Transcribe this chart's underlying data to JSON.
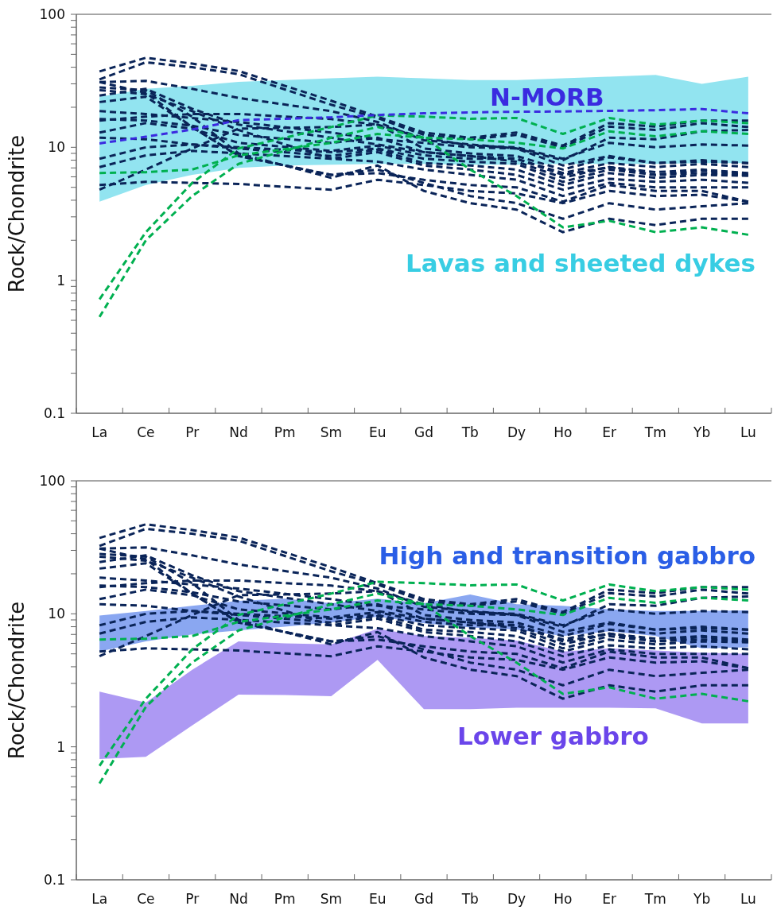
{
  "chart_data": [
    {
      "type": "line",
      "ylabel": "Rock/Chondrite",
      "line_style": "dashed",
      "log": true,
      "ylim": [
        0.1,
        100
      ],
      "yticks": [
        0.1,
        {
          "value": 0.2,
          "label": null
        },
        {
          "value": 0.3,
          "label": null
        },
        {
          "value": 0.4,
          "label": null
        },
        {
          "value": 0.5,
          "label": null
        },
        {
          "value": 0.6,
          "label": null
        },
        {
          "value": 0.7,
          "label": null
        },
        {
          "value": 0.8,
          "label": null
        },
        {
          "value": 0.9,
          "label": null
        },
        1,
        {
          "value": 2,
          "label": null
        },
        {
          "value": 3,
          "label": null
        },
        {
          "value": 4,
          "label": null
        },
        {
          "value": 5,
          "label": null
        },
        {
          "value": 6,
          "label": null
        },
        {
          "value": 7,
          "label": null
        },
        {
          "value": 8,
          "label": null
        },
        {
          "value": 9,
          "label": null
        },
        10,
        {
          "value": 20,
          "label": null
        },
        {
          "value": 30,
          "label": null
        },
        {
          "value": 40,
          "label": null
        },
        {
          "value": 50,
          "label": null
        },
        {
          "value": 60,
          "label": null
        },
        {
          "value": 70,
          "label": null
        },
        {
          "value": 80,
          "label": null
        },
        {
          "value": 90,
          "label": null
        },
        100
      ],
      "categories": [
        "La",
        "Ce",
        "Pr",
        "Nd",
        "Pm",
        "Sm",
        "Eu",
        "Gd",
        "Tb",
        "Dy",
        "Ho",
        "Er",
        "Tm",
        "Yb",
        "Lu"
      ],
      "series": [
        {
          "name": "Lavas and sheeted dykes",
          "color": "#38cde3",
          "values": [
            null,
            null,
            null,
            null,
            null,
            null,
            null,
            null,
            null,
            null,
            null,
            null,
            null,
            null,
            null
          ],
          "lower": [
            3.9,
            5.2,
            6.2,
            7.0,
            7.3,
            7.4,
            7.5,
            7.5,
            7.4,
            7.4,
            7.5,
            7.5,
            7.5,
            7.6,
            7.6
          ],
          "upper": [
            24,
            27.5,
            29,
            31,
            32,
            33,
            34,
            33,
            32,
            32,
            33,
            34,
            35,
            30,
            34
          ]
        },
        {
          "color": "#0a2458",
          "values": [
            37.2,
            47.1,
            42.6,
            37.5,
            null,
            22.4,
            17.0,
            12.9,
            11.8,
            12.9,
            10.3,
            15.2,
            14.3,
            15.9,
            15.9
          ]
        },
        {
          "color": "#0a2458",
          "values": [
            32.4,
            43.6,
            40,
            35.5,
            null,
            20.9,
            16.6,
            12.4,
            11.5,
            12.4,
            10.0,
            14.3,
            13.5,
            15.2,
            14.2
          ]
        },
        {
          "color": "#0a2458",
          "values": [
            30.9,
            31.6,
            27.5,
            23.5,
            null,
            18.7,
            15.5,
            11.3,
            10.5,
            9.8,
            8.0,
            11.8,
            11.5,
            13.2,
            13.5
          ]
        },
        {
          "color": "#0a2458",
          "values": [
            21.9,
            24.0,
            14.2,
            8.6,
            null,
            6.2,
            6.4,
            5.7,
            5.2,
            5.0,
            3.9,
            5.2,
            4.7,
            4.7,
            3.9
          ]
        },
        {
          "color": "#0a2458",
          "values": [
            4.8,
            6.8,
            9.8,
            13.8,
            null,
            14.2,
            14.8,
            11.8,
            10.3,
            10.0,
            8.2,
            10.8,
            10.0,
            10.5,
            10.3
          ]
        },
        {
          "color": "#0a2458",
          "values": [
            15.9,
            17.0,
            17.8,
            17.8,
            null,
            16.3,
            14.8,
            9.8,
            9.0,
            8.6,
            6.8,
            8.4,
            7.6,
            8.0,
            7.6
          ]
        },
        {
          "color": "#0a2458",
          "values": [
            16.3,
            15.9,
            14.5,
            12.4,
            null,
            10.8,
            11.8,
            9.2,
            8.6,
            8.2,
            6.4,
            7.6,
            7.1,
            7.5,
            7.1
          ]
        },
        {
          "color": "#0a2458",
          "values": [
            12.9,
            15.2,
            13.8,
            10.8,
            null,
            9.4,
            10.3,
            8.7,
            8.2,
            8.2,
            6.2,
            7.1,
            6.5,
            6.8,
            6.4
          ]
        },
        {
          "color": "#0a2458",
          "values": [
            11.8,
            11.5,
            10.5,
            10.0,
            null,
            9.2,
            9.8,
            8.2,
            7.8,
            7.5,
            5.5,
            6.8,
            6.2,
            6.7,
            6.2
          ]
        },
        {
          "color": "#0a2458",
          "values": [
            8.2,
            10.0,
            10.5,
            9.8,
            null,
            8.6,
            9.6,
            7.6,
            7.3,
            6.8,
            5.2,
            6.4,
            5.9,
            6.2,
            6.1
          ]
        },
        {
          "color": "#0a2458",
          "values": [
            7.1,
            8.7,
            9.4,
            9.0,
            null,
            8.2,
            9.2,
            7.3,
            6.8,
            6.2,
            4.8,
            5.8,
            5.5,
            5.7,
            5.4
          ]
        },
        {
          "color": "#0a2458",
          "values": [
            5.2,
            5.5,
            5.4,
            5.3,
            null,
            4.8,
            5.7,
            5.2,
            4.7,
            4.5,
            3.8,
            4.7,
            4.3,
            4.4,
            3.9
          ]
        },
        {
          "color": "#0a2458",
          "values": [
            26.9,
            25.1,
            18.7,
            13.5,
            null,
            8.2,
            7.8,
            6.8,
            6.2,
            5.7,
            4.3,
            5.4,
            5.0,
            5.0,
            5.0
          ]
        },
        {
          "color": "#0a2458",
          "values": [
            30.9,
            25.7,
            14.2,
            8.6,
            null,
            6.2,
            6.8,
            5.4,
            4.3,
            3.8,
            2.9,
            3.8,
            3.4,
            3.6,
            3.8
          ]
        },
        {
          "color": "#0a2458",
          "values": [
            28.2,
            26.9,
            17.0,
            9.0,
            null,
            5.9,
            7.3,
            4.7,
            3.8,
            3.4,
            2.3,
            2.9,
            2.6,
            2.9,
            2.9
          ]
        },
        {
          "color": "#0a2458",
          "values": [
            24.5,
            27.5,
            19.5,
            14.8,
            null,
            11.8,
            10.5,
            9.2,
            8.6,
            7.8,
            5.9,
            7.1,
            6.2,
            6.4,
            6.2
          ]
        },
        {
          "color": "#0a2458",
          "values": [
            18.7,
            17.8,
            16.6,
            15.5,
            null,
            12.9,
            11.5,
            10.8,
            10.0,
            9.8,
            7.3,
            8.6,
            7.6,
            7.8,
            7.6
          ]
        },
        {
          "color": "#00b050",
          "values": [
            0.72,
            2.3,
            5.4,
            9.8,
            null,
            14.2,
            17.4,
            17.0,
            16.4,
            16.6,
            12.6,
            16.6,
            14.8,
            15.9,
            15.2
          ]
        },
        {
          "color": "#00b050",
          "values": [
            0.53,
            2.0,
            4.3,
            7.5,
            null,
            11.8,
            14.2,
            11.8,
            6.8,
            4.3,
            2.5,
            2.8,
            2.3,
            2.5,
            2.2
          ]
        },
        {
          "color": "#00b050",
          "values": [
            6.4,
            6.5,
            6.8,
            8.7,
            null,
            10.8,
            12.6,
            11.8,
            11.5,
            10.8,
            9.8,
            13.2,
            12.1,
            13.2,
            12.6
          ]
        },
        {
          "name": "N-MORB",
          "color": "#3a2be0",
          "values": [
            10.7,
            12,
            13.6,
            16,
            null,
            16.8,
            17.5,
            18,
            18.3,
            18.5,
            18.6,
            18.8,
            19,
            19.4,
            18
          ]
        }
      ]
    },
    {
      "type": "line",
      "ylabel": "Rock/Chondrite",
      "line_style": "dashed",
      "log": true,
      "ylim": [
        0.1,
        100
      ],
      "yticks": [
        0.1,
        {
          "value": 0.2,
          "label": null
        },
        {
          "value": 0.3,
          "label": null
        },
        {
          "value": 0.4,
          "label": null
        },
        {
          "value": 0.5,
          "label": null
        },
        {
          "value": 0.6,
          "label": null
        },
        {
          "value": 0.7,
          "label": null
        },
        {
          "value": 0.8,
          "label": null
        },
        {
          "value": 0.9,
          "label": null
        },
        1,
        {
          "value": 2,
          "label": null
        },
        {
          "value": 3,
          "label": null
        },
        {
          "value": 4,
          "label": null
        },
        {
          "value": 5,
          "label": null
        },
        {
          "value": 6,
          "label": null
        },
        {
          "value": 7,
          "label": null
        },
        {
          "value": 8,
          "label": null
        },
        {
          "value": 9,
          "label": null
        },
        10,
        {
          "value": 20,
          "label": null
        },
        {
          "value": 30,
          "label": null
        },
        {
          "value": 40,
          "label": null
        },
        {
          "value": 50,
          "label": null
        },
        {
          "value": 60,
          "label": null
        },
        {
          "value": 70,
          "label": null
        },
        {
          "value": 80,
          "label": null
        },
        {
          "value": 90,
          "label": null
        },
        100
      ],
      "categories": [
        "La",
        "Ce",
        "Pr",
        "Nd",
        "Pm",
        "Sm",
        "Eu",
        "Gd",
        "Tb",
        "Dy",
        "Ho",
        "Er",
        "Tm",
        "Yb",
        "Lu"
      ],
      "series": [
        {
          "name": "Lower gabbro",
          "color": "#6a45ea",
          "values": [
            null,
            null,
            null,
            null,
            null,
            null,
            null,
            null,
            null,
            null,
            null,
            null,
            null,
            null,
            null
          ],
          "lower": [
            0.81,
            0.84,
            1.45,
            2.47,
            2.45,
            2.4,
            4.5,
            1.92,
            1.92,
            1.97,
            1.97,
            1.97,
            1.95,
            1.5,
            1.5
          ],
          "upper": [
            2.6,
            2.15,
            3.8,
            6.2,
            6.0,
            5.9,
            7.7,
            6.8,
            6.6,
            6.3,
            5.2,
            5.5,
            5.3,
            5.1,
            5.0
          ]
        },
        {
          "name": "High and transition gabbro",
          "color": "#2a5ee6",
          "values": [
            null,
            null,
            null,
            null,
            null,
            null,
            null,
            null,
            null,
            null,
            null,
            null,
            null,
            null,
            null
          ],
          "lower": [
            5.2,
            6.2,
            7.0,
            7.5,
            8,
            8.6,
            9.5,
            8.5,
            7.9,
            7.6,
            6.8,
            7.4,
            6.8,
            5.5,
            5.6
          ],
          "upper": [
            9.7,
            10.5,
            11.5,
            12.5,
            13,
            12,
            13,
            12,
            14,
            11.8,
            11.5,
            10.8,
            10.5,
            10.5,
            10.6
          ]
        },
        {
          "color": "#0a2458",
          "values": [
            37.2,
            47.1,
            42.6,
            37.5,
            null,
            22.4,
            17.0,
            12.9,
            11.8,
            12.9,
            10.3,
            15.2,
            14.3,
            15.9,
            15.9
          ]
        },
        {
          "color": "#0a2458",
          "values": [
            32.4,
            43.6,
            40,
            35.5,
            null,
            20.9,
            16.6,
            12.4,
            11.5,
            12.4,
            10.0,
            14.3,
            13.5,
            15.2,
            14.2
          ]
        },
        {
          "color": "#0a2458",
          "values": [
            30.9,
            31.6,
            27.5,
            23.5,
            null,
            18.7,
            15.5,
            11.3,
            10.5,
            9.8,
            8.0,
            11.8,
            11.5,
            13.2,
            13.5
          ]
        },
        {
          "color": "#0a2458",
          "values": [
            21.9,
            24.0,
            14.2,
            8.6,
            null,
            6.2,
            6.4,
            5.7,
            5.2,
            5.0,
            3.9,
            5.2,
            4.7,
            4.7,
            3.9
          ]
        },
        {
          "color": "#0a2458",
          "values": [
            4.8,
            6.8,
            9.8,
            13.8,
            null,
            14.2,
            14.8,
            11.8,
            10.3,
            10.0,
            8.2,
            10.8,
            10.0,
            10.5,
            10.3
          ]
        },
        {
          "color": "#0a2458",
          "values": [
            15.9,
            17.0,
            17.8,
            17.8,
            null,
            16.3,
            14.8,
            9.8,
            9.0,
            8.6,
            6.8,
            8.4,
            7.6,
            8.0,
            7.6
          ]
        },
        {
          "color": "#0a2458",
          "values": [
            16.3,
            15.9,
            14.5,
            12.4,
            null,
            10.8,
            11.8,
            9.2,
            8.6,
            8.2,
            6.4,
            7.6,
            7.1,
            7.5,
            7.1
          ]
        },
        {
          "color": "#0a2458",
          "values": [
            12.9,
            15.2,
            13.8,
            10.8,
            null,
            9.4,
            10.3,
            8.7,
            8.2,
            8.2,
            6.2,
            7.1,
            6.5,
            6.8,
            6.4
          ]
        },
        {
          "color": "#0a2458",
          "values": [
            11.8,
            11.5,
            10.5,
            10.0,
            null,
            9.2,
            9.8,
            8.2,
            7.8,
            7.5,
            5.5,
            6.8,
            6.2,
            6.7,
            6.2
          ]
        },
        {
          "color": "#0a2458",
          "values": [
            8.2,
            10.0,
            10.5,
            9.8,
            null,
            8.6,
            9.6,
            7.6,
            7.3,
            6.8,
            5.2,
            6.4,
            5.9,
            6.2,
            6.1
          ]
        },
        {
          "color": "#0a2458",
          "values": [
            7.1,
            8.7,
            9.4,
            9.0,
            null,
            8.2,
            9.2,
            7.3,
            6.8,
            6.2,
            4.8,
            5.8,
            5.5,
            5.7,
            5.4
          ]
        },
        {
          "color": "#0a2458",
          "values": [
            5.2,
            5.5,
            5.4,
            5.3,
            null,
            4.8,
            5.7,
            5.2,
            4.7,
            4.5,
            3.8,
            4.7,
            4.3,
            4.4,
            3.9
          ]
        },
        {
          "color": "#0a2458",
          "values": [
            26.9,
            25.1,
            18.7,
            13.5,
            null,
            8.2,
            7.8,
            6.8,
            6.2,
            5.7,
            4.3,
            5.4,
            5.0,
            5.0,
            5.0
          ]
        },
        {
          "color": "#0a2458",
          "values": [
            30.9,
            25.7,
            14.2,
            8.6,
            null,
            6.2,
            6.8,
            5.4,
            4.3,
            3.8,
            2.9,
            3.8,
            3.4,
            3.6,
            3.8
          ]
        },
        {
          "color": "#0a2458",
          "values": [
            28.2,
            26.9,
            17.0,
            9.0,
            null,
            5.9,
            7.3,
            4.7,
            3.8,
            3.4,
            2.3,
            2.9,
            2.6,
            2.9,
            2.9
          ]
        },
        {
          "color": "#0a2458",
          "values": [
            24.5,
            27.5,
            19.5,
            14.8,
            null,
            11.8,
            10.5,
            9.2,
            8.6,
            7.8,
            5.9,
            7.1,
            6.2,
            6.4,
            6.2
          ]
        },
        {
          "color": "#0a2458",
          "values": [
            18.7,
            17.8,
            16.6,
            15.5,
            null,
            12.9,
            11.5,
            10.8,
            10.0,
            9.8,
            7.3,
            8.6,
            7.6,
            7.8,
            7.6
          ]
        },
        {
          "color": "#00b050",
          "values": [
            0.72,
            2.3,
            5.4,
            9.8,
            null,
            14.2,
            17.4,
            17.0,
            16.4,
            16.6,
            12.6,
            16.6,
            14.8,
            15.9,
            15.2
          ]
        },
        {
          "color": "#00b050",
          "values": [
            0.53,
            2.0,
            4.3,
            7.5,
            null,
            11.8,
            14.2,
            11.8,
            6.8,
            4.3,
            2.5,
            2.8,
            2.3,
            2.5,
            2.2
          ]
        },
        {
          "color": "#00b050",
          "values": [
            6.4,
            6.5,
            6.8,
            8.7,
            null,
            10.8,
            12.6,
            11.8,
            11.5,
            10.8,
            9.8,
            13.2,
            12.1,
            13.2,
            12.6
          ]
        }
      ]
    }
  ]
}
